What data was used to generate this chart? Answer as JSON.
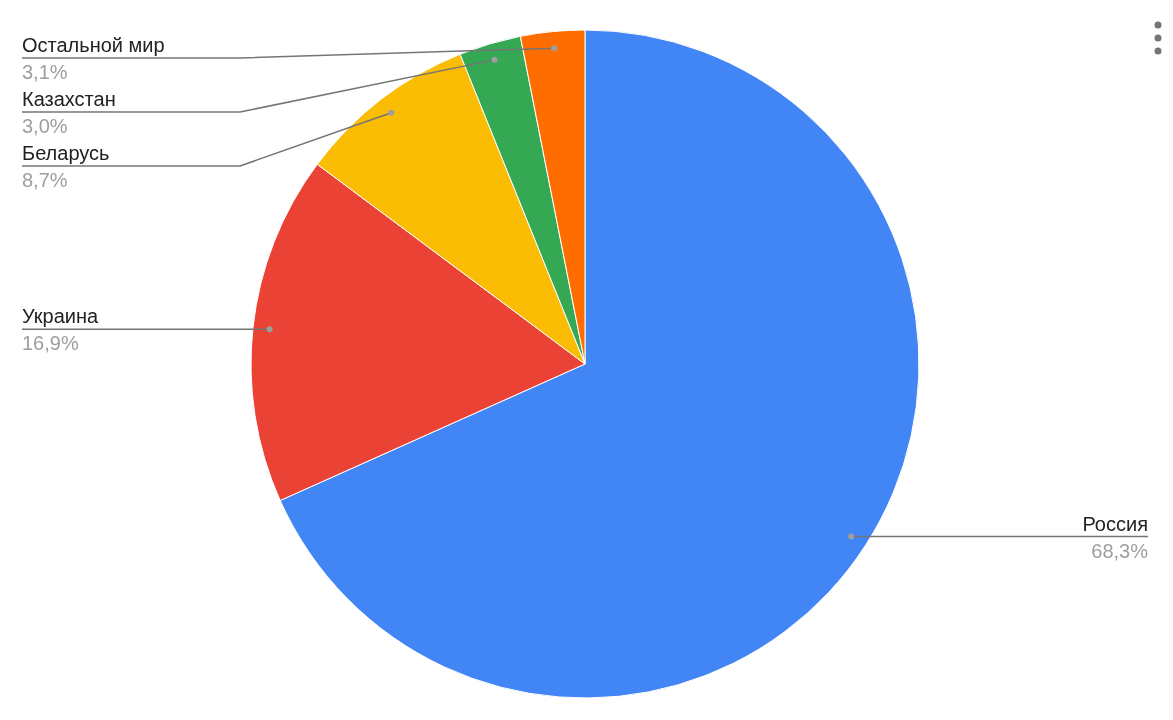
{
  "chart_data": {
    "type": "pie",
    "categories": [
      "Россия",
      "Украина",
      "Беларусь",
      "Казахстан",
      "Остальной мир"
    ],
    "values": [
      68.3,
      16.9,
      8.7,
      3.0,
      3.1
    ],
    "colors": [
      "#4285f4",
      "#ea4335",
      "#fbbc04",
      "#34a853",
      "#ff6d01"
    ],
    "value_labels": [
      "68,3%",
      "16,9%",
      "8,7%",
      "3,0%",
      "3,1%"
    ]
  }
}
